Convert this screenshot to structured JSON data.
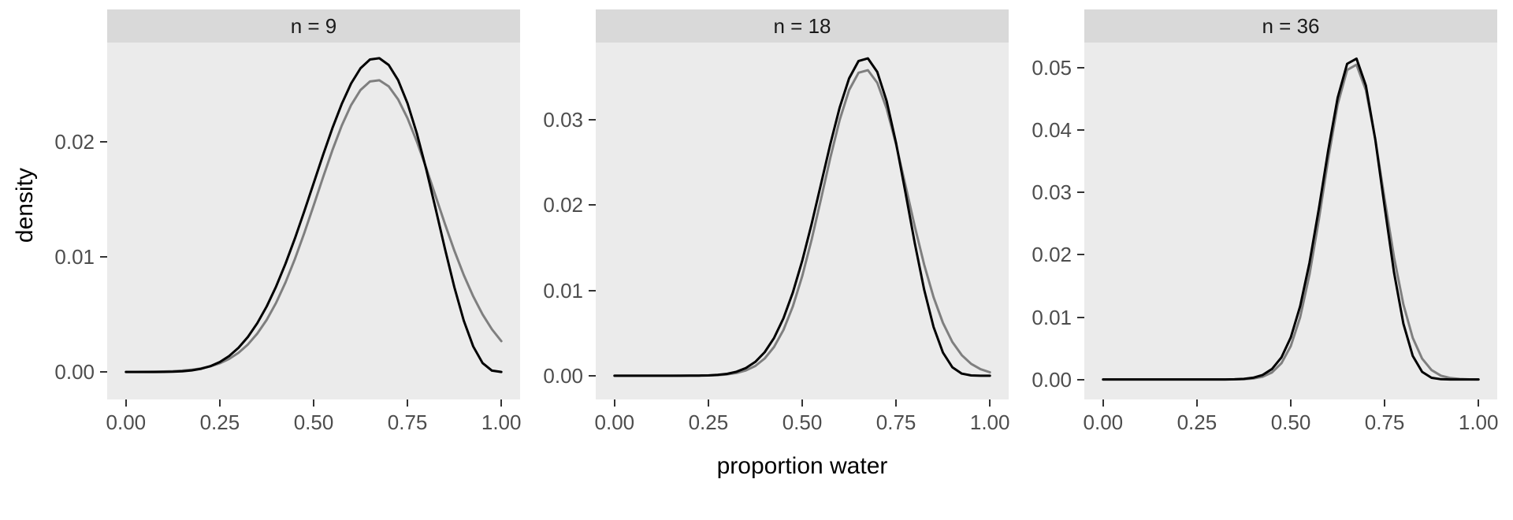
{
  "figure": {
    "background": "#ffffff",
    "panel_background": "#ebebeb",
    "strip_background": "#d9d9d9",
    "axis_text_color": "#4d4d4d",
    "axis_title_color": "#000000"
  },
  "chart_data": {
    "type": "line",
    "title": "",
    "xlabel": "proportion water",
    "ylabel": "density",
    "xlim": [
      0,
      1
    ],
    "grid": "off",
    "legend": "none",
    "x_ticks": [
      0,
      0.25,
      0.5,
      0.75,
      1
    ],
    "x": [
      0,
      0.025,
      0.05,
      0.075,
      0.1,
      0.125,
      0.15,
      0.175,
      0.2,
      0.225,
      0.25,
      0.275,
      0.3,
      0.325,
      0.35,
      0.375,
      0.4,
      0.425,
      0.45,
      0.475,
      0.5,
      0.525,
      0.55,
      0.575,
      0.6,
      0.625,
      0.65,
      0.675,
      0.7,
      0.725,
      0.75,
      0.775,
      0.8,
      0.825,
      0.85,
      0.875,
      0.9,
      0.925,
      0.95,
      0.975,
      1
    ],
    "facets": [
      {
        "label": "n = 9",
        "y_ticks": [
          0,
          0.01,
          0.02
        ],
        "series": [
          {
            "name": "black",
            "color": "#000000",
            "values": [
              0,
              0,
              0,
              1e-06,
              6e-06,
              2.1e-05,
              5.9e-05,
              0.000135,
              0.000275,
              0.000507,
              0.000865,
              0.001382,
              0.0021,
              0.003045,
              0.004241,
              0.005703,
              0.007432,
              0.009411,
              0.011605,
              0.013961,
              0.016406,
              0.01885,
              0.021189,
              0.023305,
              0.025082,
              0.026403,
              0.027162,
              0.027274,
              0.026683,
              0.02537,
              0.02336,
              0.020732,
              0.017616,
              0.014195,
              0.010692,
              0.007363,
              0.004464,
              0.00222,
              0.000772,
              0.000113,
              0
            ]
          },
          {
            "name": "gray",
            "color": "#7f7f7f",
            "values": [
              3e-06,
              6e-06,
              1.1e-05,
              2.1e-05,
              3.8e-05,
              6.7e-05,
              0.000114,
              0.00019,
              0.000308,
              0.000489,
              0.000755,
              0.001137,
              0.001669,
              0.002388,
              0.003332,
              0.004535,
              0.006016,
              0.007782,
              0.009815,
              0.012068,
              0.014468,
              0.016913,
              0.019276,
              0.02142,
              0.023207,
              0.024516,
              0.025251,
              0.025357,
              0.024828,
              0.023702,
              0.022062,
              0.020022,
              0.017717,
              0.015285,
              0.012857,
              0.010544,
              0.008432,
              0.006573,
              0.004997,
              0.003706,
              0.002677
            ]
          }
        ]
      },
      {
        "label": "n = 18",
        "y_ticks": [
          0,
          0.01,
          0.02,
          0.03
        ],
        "series": [
          {
            "name": "black",
            "color": "#000000",
            "values": [
              0,
              0,
              0,
              0,
              0,
              0,
              0,
              1e-06,
              4e-06,
              1.3e-05,
              3.7e-05,
              9.6e-05,
              0.000221,
              0.000463,
              0.000899,
              0.001626,
              0.002761,
              0.004427,
              0.006732,
              0.009743,
              0.013455,
              0.017763,
              0.022443,
              0.027152,
              0.031449,
              0.034847,
              0.036881,
              0.037186,
              0.03559,
              0.032173,
              0.027278,
              0.021486,
              0.015513,
              0.010072,
              0.005715,
              0.00271,
              0.000996,
              0.000246,
              3e-05,
              1e-06,
              0
            ]
          },
          {
            "name": "gray",
            "color": "#7f7f7f",
            "values": [
              0,
              0,
              0,
              0,
              0,
              0,
              1e-06,
              2e-06,
              5e-06,
              1.3e-05,
              3.2e-05,
              7.2e-05,
              0.000155,
              0.000317,
              0.000618,
              0.001145,
              0.002016,
              0.003372,
              0.005364,
              0.008111,
              0.011656,
              0.015929,
              0.020691,
              0.02555,
              0.029993,
              0.03347,
              0.035506,
              0.035808,
              0.034327,
              0.031285,
              0.027105,
              0.022324,
              0.017478,
              0.01301,
              0.009205,
              0.006191,
              0.003959,
              0.002406,
              0.00139,
              0.000765,
              0.000399
            ]
          }
        ]
      },
      {
        "label": "n = 36",
        "y_ticks": [
          0,
          0.01,
          0.02,
          0.03,
          0.04,
          0.05
        ],
        "series": [
          {
            "name": "black",
            "color": "#000000",
            "values": [
              0,
              0,
              0,
              0,
              0,
              0,
              0,
              0,
              0,
              0,
              0,
              0,
              2e-06,
              8e-06,
              3e-05,
              9.8e-05,
              0.000284,
              0.00073,
              0.001687,
              0.003534,
              0.006739,
              0.011745,
              0.018749,
              0.027443,
              0.036818,
              0.045203,
              0.050634,
              0.051473,
              0.047151,
              0.038533,
              0.0277,
              0.017184,
              0.008958,
              0.003776,
              0.001216,
              0.000273,
              3.7e-05,
              2e-06,
              0,
              0,
              0
            ]
          },
          {
            "name": "gray",
            "color": "#7f7f7f",
            "values": [
              0,
              0,
              0,
              0,
              0,
              0,
              0,
              0,
              0,
              0,
              0,
              0,
              1e-06,
              4e-06,
              1.5e-05,
              5.2e-05,
              0.00016,
              0.000448,
              0.001133,
              0.002591,
              0.005351,
              0.009993,
              0.01686,
              0.025709,
              0.035427,
              0.044118,
              0.049651,
              0.050497,
              0.046411,
              0.038549,
              0.028936,
              0.019628,
              0.012032,
              0.006666,
              0.003337,
              0.00151,
              0.000617,
              0.000228,
              7.6e-05,
              2.3e-05,
              6e-06
            ]
          }
        ]
      }
    ]
  }
}
